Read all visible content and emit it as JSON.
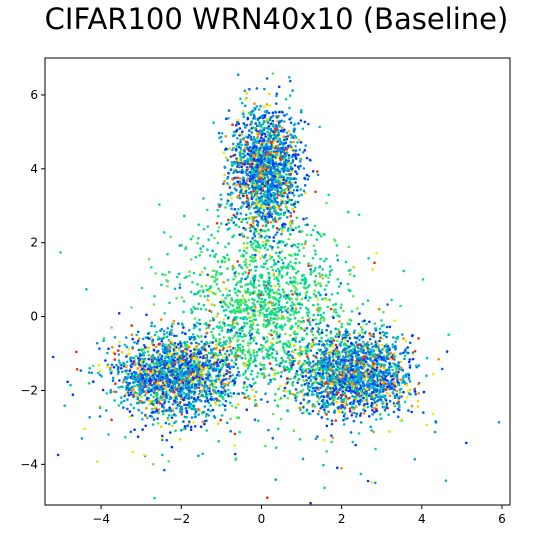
{
  "chart_data": {
    "type": "scatter",
    "title": "CIFAR100 WRN40x10 (Baseline)",
    "xlabel": "",
    "ylabel": "",
    "xlim": [
      -5.4,
      6.2
    ],
    "ylim": [
      -5.1,
      7.0
    ],
    "xticks": [
      -4,
      -2,
      0,
      2,
      4,
      6
    ],
    "yticks": [
      -4,
      -2,
      0,
      2,
      4,
      6
    ],
    "xtick_labels": [
      "−4",
      "−2",
      "0",
      "2",
      "4",
      "6"
    ],
    "ytick_labels": [
      "−4",
      "−2",
      "0",
      "2",
      "4",
      "6"
    ],
    "grid": false,
    "legend": "none",
    "marker_size": 1.3,
    "colors": {
      "palette_warm": [
        "#ff2200",
        "#ff8800",
        "#ffcc00",
        "#e8f000"
      ],
      "palette_cool": [
        "#0033ff",
        "#0066ee",
        "#0099dd",
        "#00bbcc"
      ],
      "palette_green": [
        "#00e08a",
        "#00d8a0",
        "#22e070",
        "#60e850"
      ]
    },
    "clusters": [
      {
        "name": "",
        "center": [
          0.1,
          4.0
        ],
        "spread": [
          0.45,
          0.85
        ],
        "count": 1700,
        "mix": {
          "cool": 0.7,
          "warm": 0.22,
          "green": 0.08
        }
      },
      {
        "name": "",
        "center": [
          -2.2,
          -1.6
        ],
        "spread": [
          0.75,
          0.55
        ],
        "count": 1700,
        "mix": {
          "cool": 0.7,
          "warm": 0.22,
          "green": 0.08
        }
      },
      {
        "name": "",
        "center": [
          2.3,
          -1.55
        ],
        "spread": [
          0.75,
          0.55
        ],
        "count": 1700,
        "mix": {
          "cool": 0.7,
          "warm": 0.22,
          "green": 0.08
        }
      },
      {
        "name": "",
        "center": [
          0.1,
          0.2
        ],
        "spread": [
          1.1,
          1.2
        ],
        "count": 1500,
        "mix": {
          "cool": 0.08,
          "warm": 0.05,
          "green": 0.87
        }
      },
      {
        "name": "",
        "center": [
          0.0,
          -2.0
        ],
        "spread": [
          3.4,
          1.7
        ],
        "count": 180,
        "mix": {
          "cool": 0.55,
          "warm": 0.25,
          "green": 0.2
        }
      }
    ]
  }
}
